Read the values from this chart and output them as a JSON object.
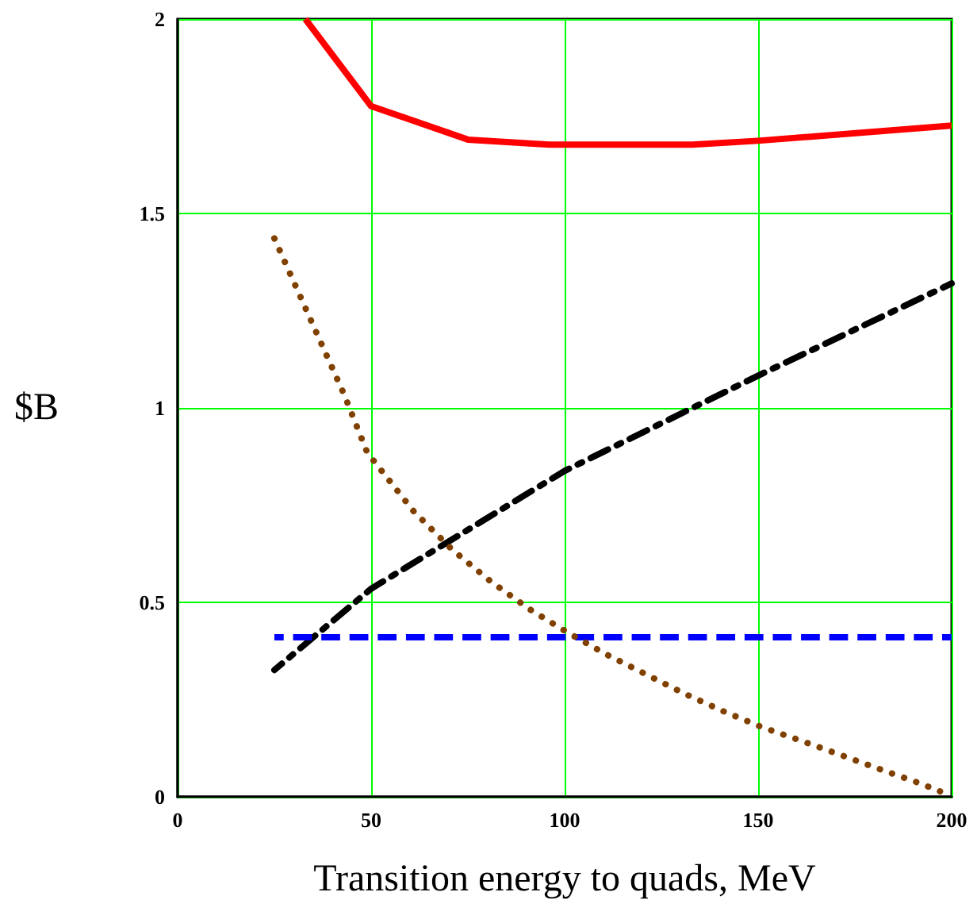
{
  "chart_data": {
    "type": "line",
    "xlabel": "Transition energy to quads, MeV",
    "ylabel": "$B",
    "xlim": [
      0,
      200
    ],
    "xticks": [
      0,
      50,
      100,
      150,
      200
    ],
    "ylim": [
      0,
      2
    ],
    "yticks": [
      0,
      0.5,
      1,
      1.5,
      2
    ],
    "grid": true,
    "marker": "none",
    "series": [
      {
        "color": "#ff0000",
        "line_style": "solid",
        "x": [
          33,
          50,
          75,
          96,
          133,
          150,
          200
        ],
        "values": [
          2,
          1.776,
          1.69,
          1.677,
          1.677,
          1.687,
          1.726
        ]
      },
      {
        "color": "#000000",
        "line_style": "dashdot",
        "x": [
          25,
          50,
          100,
          150,
          200
        ],
        "values": [
          0.326,
          0.535,
          0.838,
          1.083,
          1.32
        ]
      },
      {
        "color": "#0000ff",
        "line_style": "dashed",
        "x": [
          25,
          200
        ],
        "values": [
          0.41,
          0.41
        ]
      },
      {
        "color": "#804000",
        "line_style": "dotted",
        "x": [
          25,
          34,
          43,
          49,
          61,
          71,
          81,
          91,
          101,
          111,
          121,
          131,
          141,
          151,
          162,
          172,
          182,
          192,
          197
        ],
        "values": [
          1.436,
          1.235,
          1.035,
          0.885,
          0.734,
          0.635,
          0.553,
          0.482,
          0.421,
          0.365,
          0.315,
          0.265,
          0.22,
          0.179,
          0.141,
          0.105,
          0.069,
          0.034,
          0.014
        ]
      }
    ]
  }
}
